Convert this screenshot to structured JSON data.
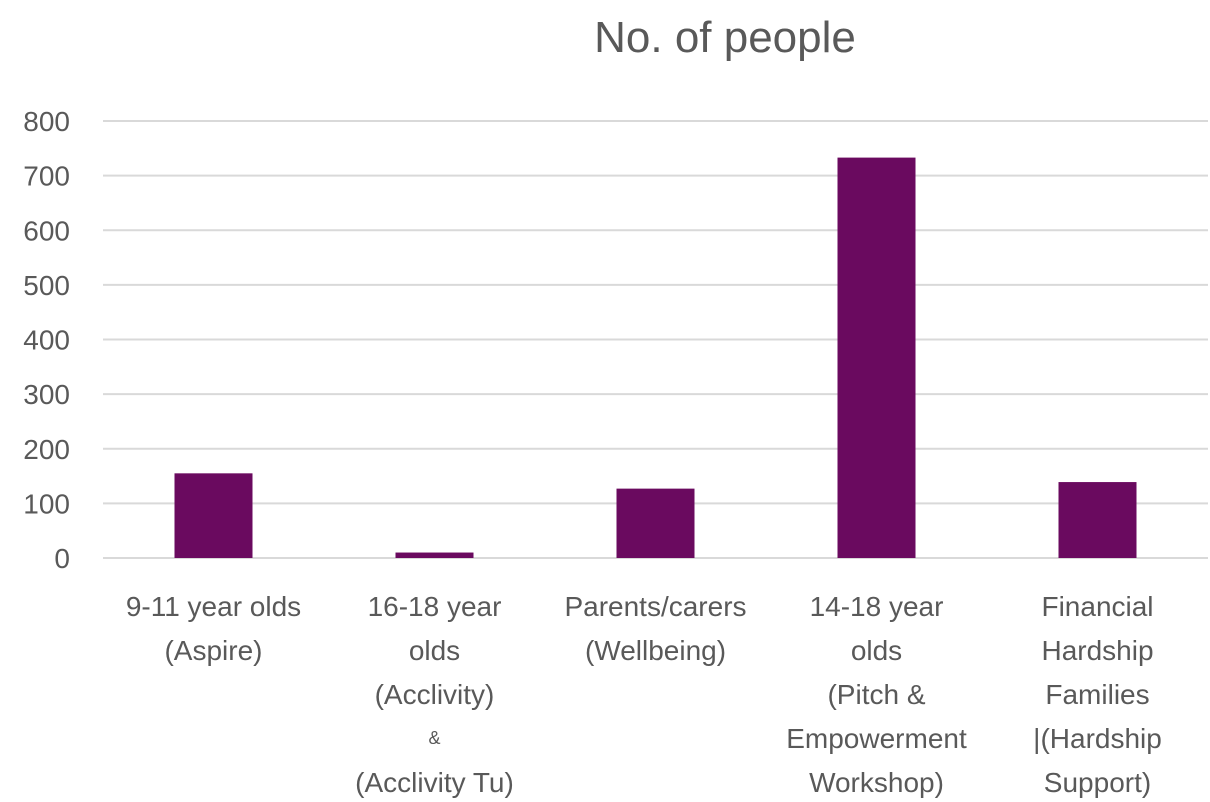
{
  "chart_data": {
    "type": "bar",
    "title": "No. of people",
    "xlabel": "",
    "ylabel": "",
    "ylim": [
      0,
      800
    ],
    "yticks": [
      0,
      100,
      200,
      300,
      400,
      500,
      600,
      700,
      800
    ],
    "grid": true,
    "legend": "none",
    "bar_color": "#6a0a5f",
    "categories": [
      [
        "9-11 year olds",
        "(Aspire)"
      ],
      [
        "16-18 year",
        "olds",
        "(Acclivity)",
        "&",
        "(Acclivity Tu)"
      ],
      [
        "Parents/carers",
        "(Wellbeing)"
      ],
      [
        "14-18 year",
        "olds",
        "(Pitch &",
        "Empowerment",
        "Workshop)"
      ],
      [
        "Financial",
        "Hardship",
        "Families",
        "|(Hardship",
        "Support)"
      ]
    ],
    "values": [
      155,
      10,
      127,
      733,
      139
    ]
  }
}
